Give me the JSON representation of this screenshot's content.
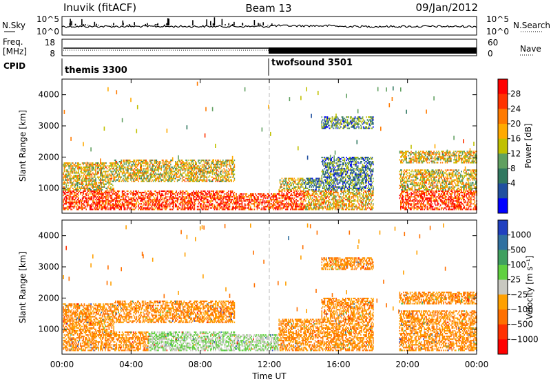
{
  "header": {
    "station": "Inuvik (fitACF)",
    "beam": "Beam 13",
    "date": "09/Jan/2012"
  },
  "chart_data": [
    {
      "type": "line",
      "panel": "sky-noise",
      "ylabel": "N.Sky",
      "y2label": "N.Search",
      "yticks": [
        "10^5",
        "10^0"
      ],
      "y2ticks": [
        "10^5",
        "10^0"
      ]
    },
    {
      "type": "line",
      "panel": "frequency-nave",
      "ylabel_line1": "Freq.",
      "ylabel_line2": "[MHz]",
      "yticks": [
        "18",
        "8"
      ],
      "y2label": "Nave",
      "y2ticks": [
        "60",
        "0"
      ]
    },
    {
      "type": "table",
      "panel": "cpid",
      "label": "CPID",
      "segments": [
        {
          "name": "themis 3300",
          "start_hour": 0,
          "end_hour": 12
        },
        {
          "name": "twofsound 3501",
          "start_hour": 12,
          "end_hour": 24
        }
      ]
    },
    {
      "type": "heatmap",
      "panel": "power",
      "ylabel": "Slant Range [km]",
      "ylim": [
        200,
        4500
      ],
      "yticks": [
        1000,
        2000,
        3000,
        4000
      ],
      "xlim": [
        0,
        24
      ],
      "colorbar": {
        "label": "Power [dB]",
        "ticks": [
          "28",
          "24",
          "20",
          "16",
          "12",
          "8",
          "4"
        ],
        "colors": [
          "#ff0000",
          "#ff3300",
          "#ff7a00",
          "#ffaa00",
          "#c0c000",
          "#60a060",
          "#307860",
          "#2050a0",
          "#0000ff"
        ]
      }
    },
    {
      "type": "heatmap",
      "panel": "velocity",
      "ylabel": "Slant Range [km]",
      "ylim": [
        200,
        4500
      ],
      "yticks": [
        1000,
        2000,
        3000,
        4000
      ],
      "xlim": [
        0,
        24
      ],
      "xticks": [
        "00:00",
        "04:00",
        "08:00",
        "12:00",
        "16:00",
        "20:00",
        "00:00"
      ],
      "xlabel": "Time UT",
      "colorbar": {
        "label": "Velocity [m s⁻¹]",
        "ticks": [
          "1000",
          "500",
          "100",
          "25",
          "−25",
          "−100",
          "−500",
          "−1000"
        ],
        "colors": [
          "#2040c0",
          "#3070a0",
          "#40a060",
          "#60d040",
          "#c8c8c0",
          "#ffa000",
          "#ff7000",
          "#ff3000",
          "#ff0000"
        ]
      }
    }
  ]
}
